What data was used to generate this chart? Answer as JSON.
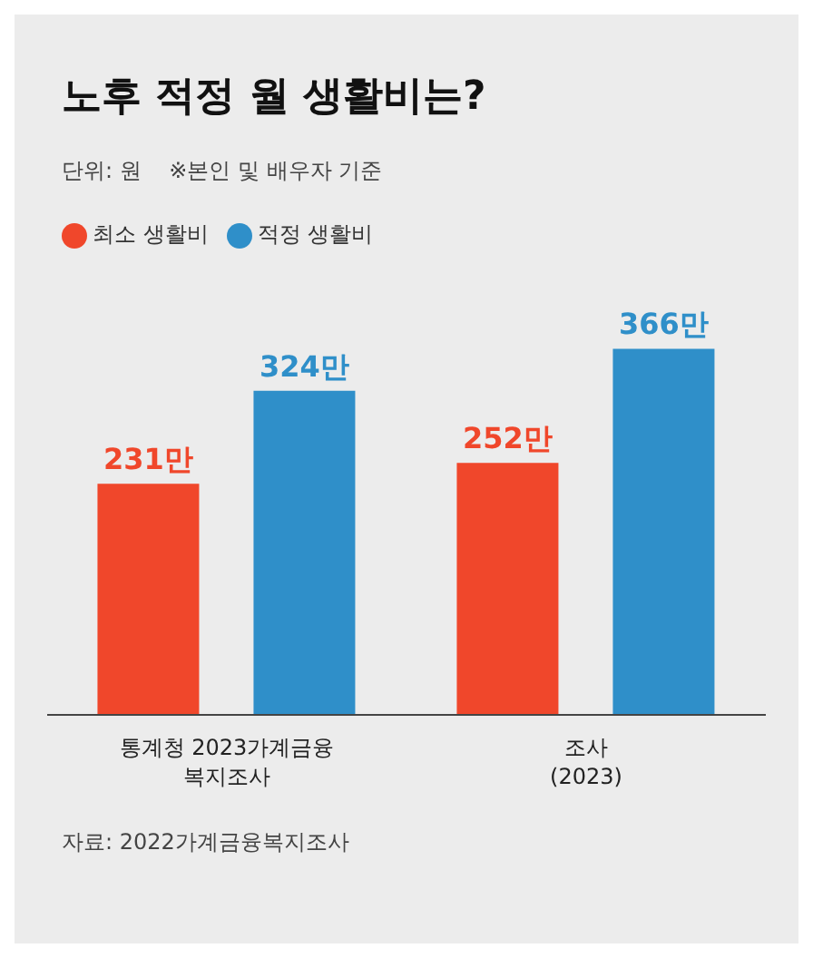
{
  "chart_data": {
    "type": "bar",
    "title": "노후 적정 월 생활비는?",
    "subtitle": "단위: 원    ※본인 및 배우자 기준",
    "categories": [
      "통계청 2023가계금융\n복지조사",
      "조사\n(2023)"
    ],
    "series": [
      {
        "name": "최소 생활비",
        "color": "#f0472b",
        "values": [
          231,
          252
        ],
        "value_labels": [
          "231만",
          "252만"
        ]
      },
      {
        "name": "적정 생활비",
        "color": "#2f8fc9",
        "values": [
          324,
          366
        ],
        "value_labels": [
          "324만",
          "366만"
        ]
      }
    ],
    "legend": "top left",
    "grid": false,
    "annotations": [
      "자료: 2022가계금융복지조사"
    ]
  }
}
